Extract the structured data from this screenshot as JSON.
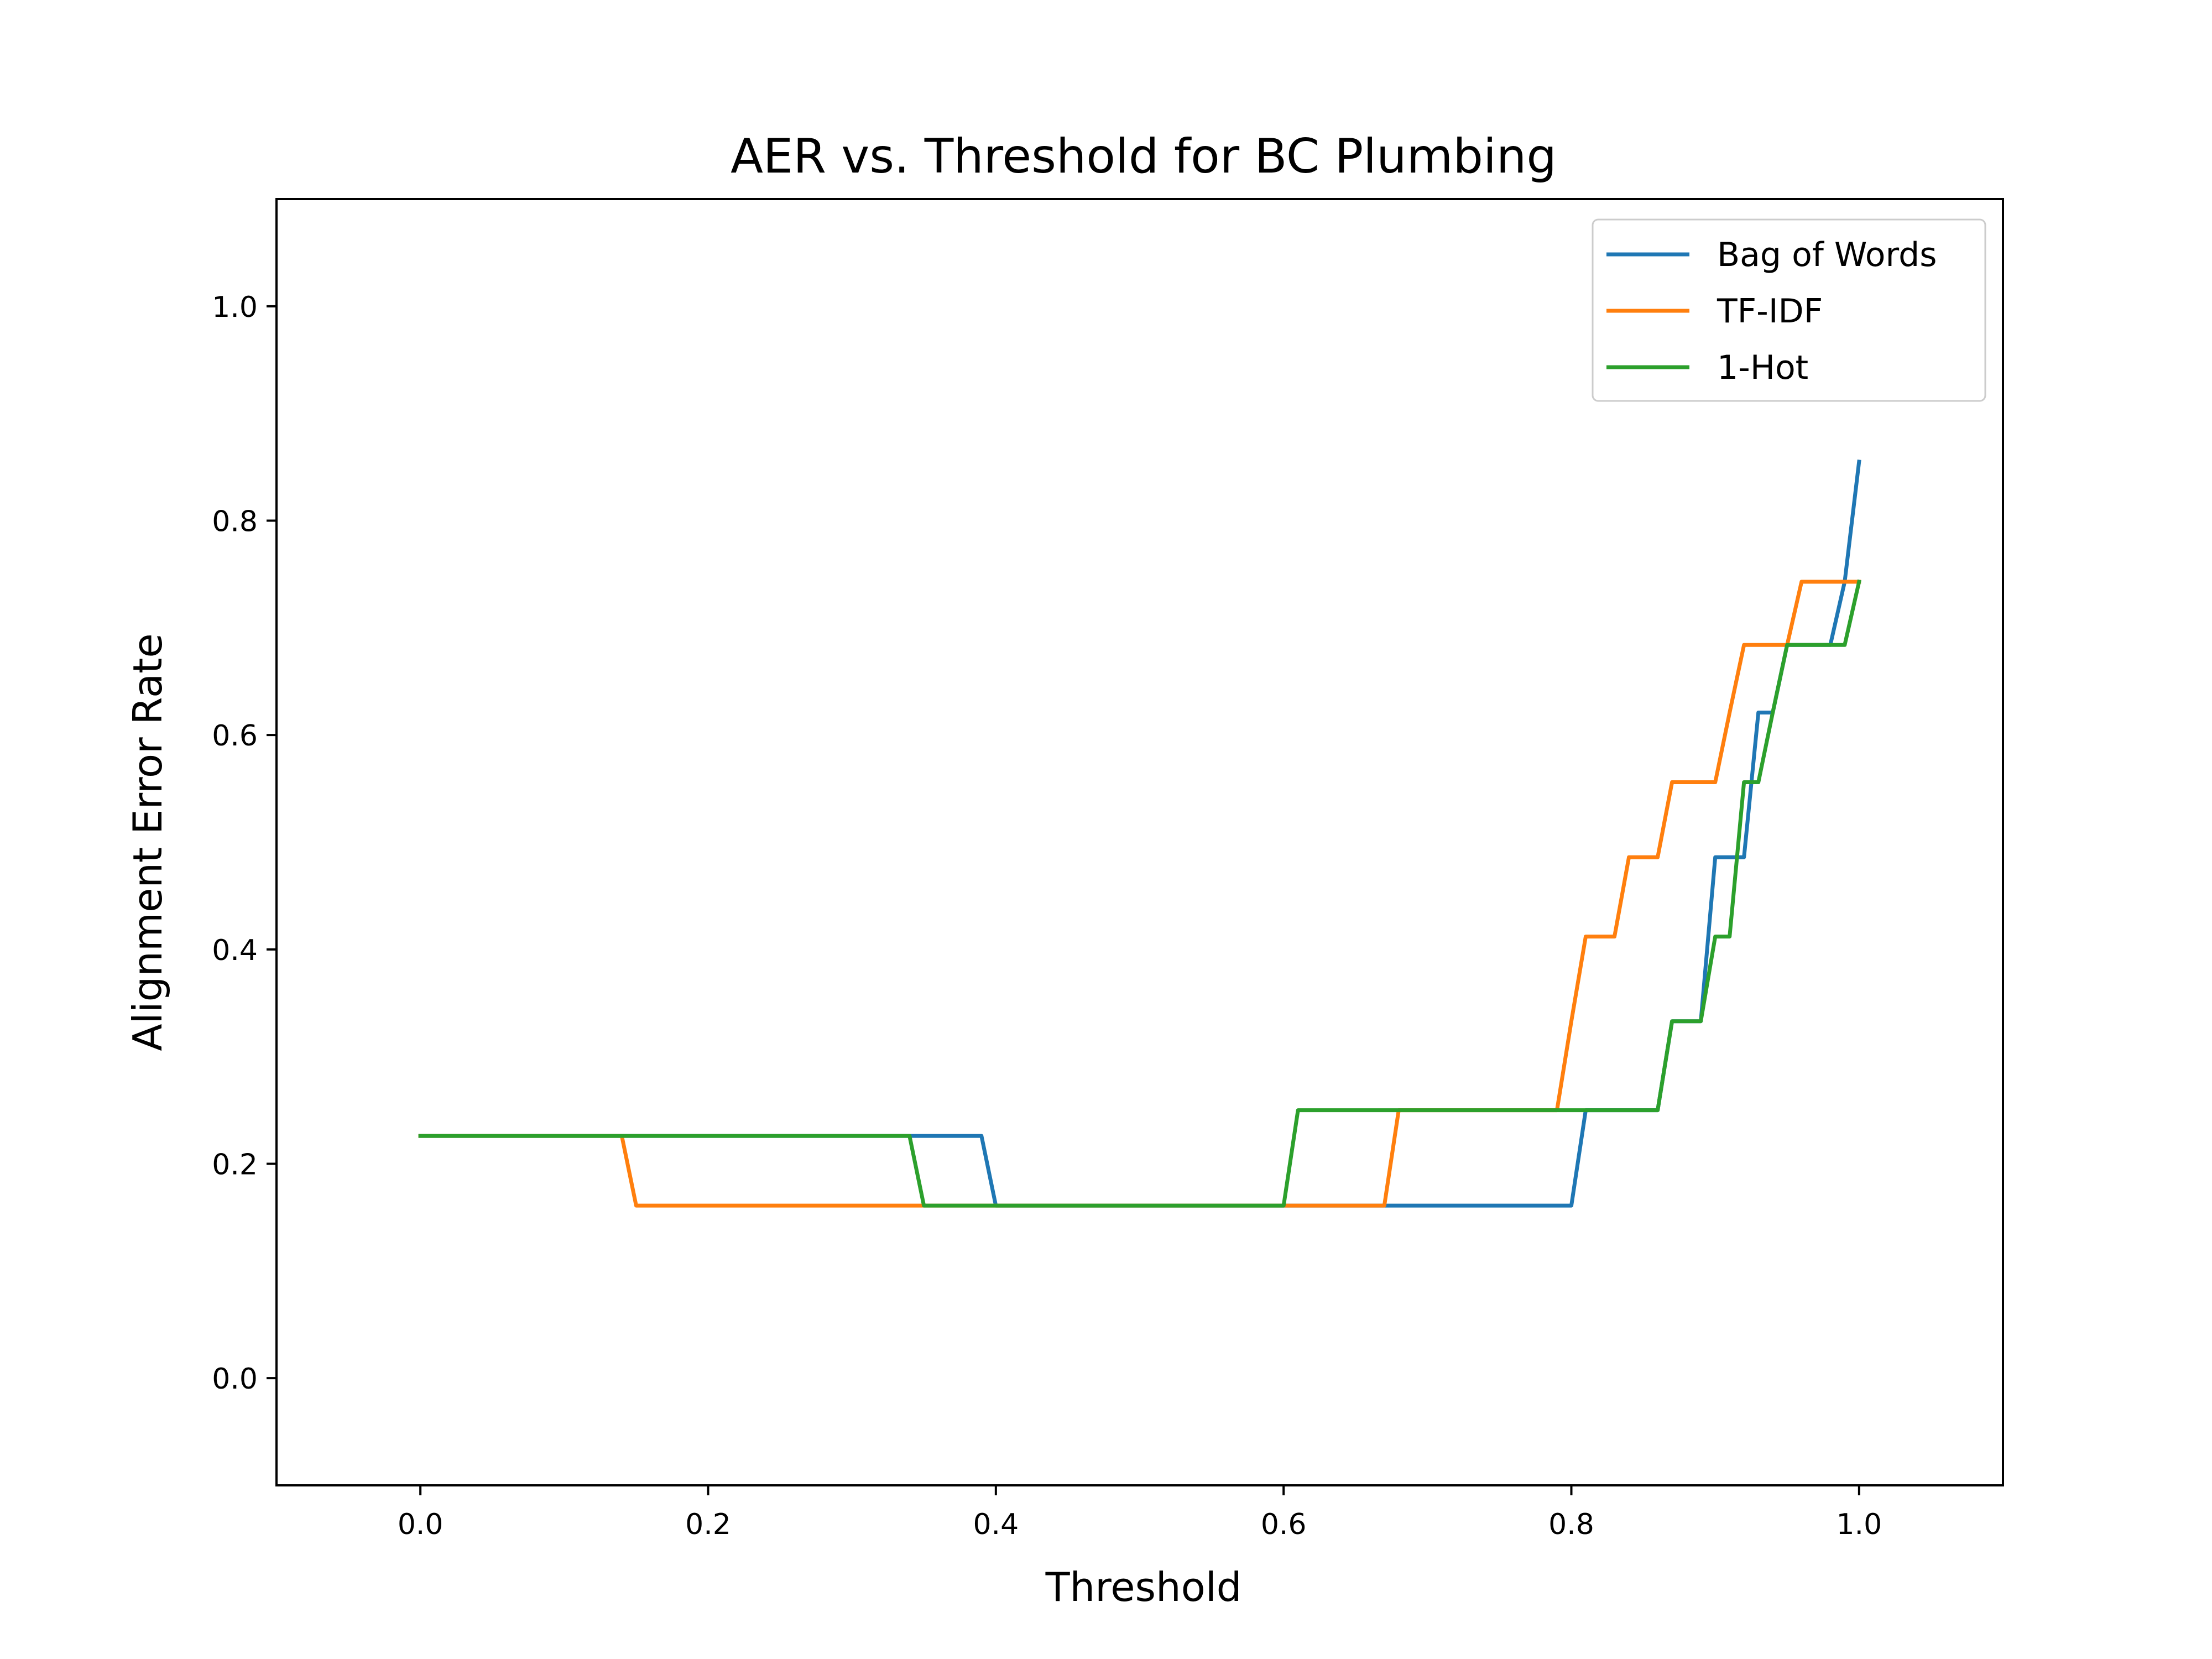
{
  "chart_data": {
    "type": "line",
    "title": "AER vs. Threshold for BC Plumbing",
    "xlabel": "Threshold",
    "ylabel": "Alignment Error Rate",
    "xlim": [
      -0.1,
      1.1
    ],
    "ylim": [
      -0.1,
      1.1
    ],
    "xticks": [
      "0.0",
      "0.2",
      "0.4",
      "0.6",
      "0.8",
      "1.0"
    ],
    "yticks": [
      "0.0",
      "0.2",
      "0.4",
      "0.6",
      "0.8",
      "1.0"
    ],
    "grid": false,
    "legend_position": "top-right",
    "x": [
      0.0,
      0.01,
      0.02,
      0.03,
      0.04,
      0.05,
      0.06,
      0.07,
      0.08,
      0.09,
      0.1,
      0.11,
      0.12,
      0.13,
      0.14,
      0.15,
      0.16,
      0.17,
      0.18,
      0.19,
      0.2,
      0.21,
      0.22,
      0.23,
      0.24,
      0.25,
      0.26,
      0.27,
      0.28,
      0.29,
      0.3,
      0.31,
      0.32,
      0.33,
      0.34,
      0.35,
      0.36,
      0.37,
      0.38,
      0.39,
      0.4,
      0.41,
      0.42,
      0.43,
      0.44,
      0.45,
      0.46,
      0.47,
      0.48,
      0.49,
      0.5,
      0.51,
      0.52,
      0.53,
      0.54,
      0.55,
      0.56,
      0.57,
      0.58,
      0.59,
      0.6,
      0.61,
      0.62,
      0.63,
      0.64,
      0.65,
      0.66,
      0.67,
      0.68,
      0.69,
      0.7,
      0.71,
      0.72,
      0.73,
      0.74,
      0.75,
      0.76,
      0.77,
      0.78,
      0.79,
      0.8,
      0.81,
      0.82,
      0.83,
      0.84,
      0.85,
      0.86,
      0.87,
      0.88,
      0.89,
      0.9,
      0.91,
      0.92,
      0.93,
      0.94,
      0.95,
      0.96,
      0.97,
      0.98,
      0.99,
      1.0
    ],
    "series": [
      {
        "name": "Bag of Words",
        "color": "#1f77b4",
        "values": [
          0.226,
          0.226,
          0.226,
          0.226,
          0.226,
          0.226,
          0.226,
          0.226,
          0.226,
          0.226,
          0.226,
          0.226,
          0.226,
          0.226,
          0.226,
          0.226,
          0.226,
          0.226,
          0.226,
          0.226,
          0.226,
          0.226,
          0.226,
          0.226,
          0.226,
          0.226,
          0.226,
          0.226,
          0.226,
          0.226,
          0.226,
          0.226,
          0.226,
          0.226,
          0.226,
          0.226,
          0.226,
          0.226,
          0.226,
          0.226,
          0.161,
          0.161,
          0.161,
          0.161,
          0.161,
          0.161,
          0.161,
          0.161,
          0.161,
          0.161,
          0.161,
          0.161,
          0.161,
          0.161,
          0.161,
          0.161,
          0.161,
          0.161,
          0.161,
          0.161,
          0.161,
          0.161,
          0.161,
          0.161,
          0.161,
          0.161,
          0.161,
          0.161,
          0.161,
          0.161,
          0.161,
          0.161,
          0.161,
          0.161,
          0.161,
          0.161,
          0.161,
          0.161,
          0.161,
          0.161,
          0.161,
          0.25,
          0.25,
          0.25,
          0.25,
          0.25,
          0.25,
          0.333,
          0.333,
          0.333,
          0.486,
          0.486,
          0.486,
          0.621,
          0.621,
          0.684,
          0.684,
          0.684,
          0.684,
          0.743,
          0.855
        ]
      },
      {
        "name": "TF-IDF",
        "color": "#ff7f0e",
        "values": [
          0.226,
          0.226,
          0.226,
          0.226,
          0.226,
          0.226,
          0.226,
          0.226,
          0.226,
          0.226,
          0.226,
          0.226,
          0.226,
          0.226,
          0.226,
          0.161,
          0.161,
          0.161,
          0.161,
          0.161,
          0.161,
          0.161,
          0.161,
          0.161,
          0.161,
          0.161,
          0.161,
          0.161,
          0.161,
          0.161,
          0.161,
          0.161,
          0.161,
          0.161,
          0.161,
          0.161,
          0.161,
          0.161,
          0.161,
          0.161,
          0.161,
          0.161,
          0.161,
          0.161,
          0.161,
          0.161,
          0.161,
          0.161,
          0.161,
          0.161,
          0.161,
          0.161,
          0.161,
          0.161,
          0.161,
          0.161,
          0.161,
          0.161,
          0.161,
          0.161,
          0.161,
          0.161,
          0.161,
          0.161,
          0.161,
          0.161,
          0.161,
          0.161,
          0.25,
          0.25,
          0.25,
          0.25,
          0.25,
          0.25,
          0.25,
          0.25,
          0.25,
          0.25,
          0.25,
          0.25,
          0.333,
          0.412,
          0.412,
          0.412,
          0.486,
          0.486,
          0.486,
          0.556,
          0.556,
          0.556,
          0.556,
          0.621,
          0.684,
          0.684,
          0.684,
          0.684,
          0.743,
          0.743,
          0.743,
          0.743,
          0.743
        ]
      },
      {
        "name": "1-Hot",
        "color": "#2ca02c",
        "values": [
          0.226,
          0.226,
          0.226,
          0.226,
          0.226,
          0.226,
          0.226,
          0.226,
          0.226,
          0.226,
          0.226,
          0.226,
          0.226,
          0.226,
          0.226,
          0.226,
          0.226,
          0.226,
          0.226,
          0.226,
          0.226,
          0.226,
          0.226,
          0.226,
          0.226,
          0.226,
          0.226,
          0.226,
          0.226,
          0.226,
          0.226,
          0.226,
          0.226,
          0.226,
          0.226,
          0.161,
          0.161,
          0.161,
          0.161,
          0.161,
          0.161,
          0.161,
          0.161,
          0.161,
          0.161,
          0.161,
          0.161,
          0.161,
          0.161,
          0.161,
          0.161,
          0.161,
          0.161,
          0.161,
          0.161,
          0.161,
          0.161,
          0.161,
          0.161,
          0.161,
          0.161,
          0.25,
          0.25,
          0.25,
          0.25,
          0.25,
          0.25,
          0.25,
          0.25,
          0.25,
          0.25,
          0.25,
          0.25,
          0.25,
          0.25,
          0.25,
          0.25,
          0.25,
          0.25,
          0.25,
          0.25,
          0.25,
          0.25,
          0.25,
          0.25,
          0.25,
          0.25,
          0.333,
          0.333,
          0.333,
          0.412,
          0.412,
          0.556,
          0.556,
          0.621,
          0.684,
          0.684,
          0.684,
          0.684,
          0.684,
          0.743
        ]
      }
    ]
  }
}
